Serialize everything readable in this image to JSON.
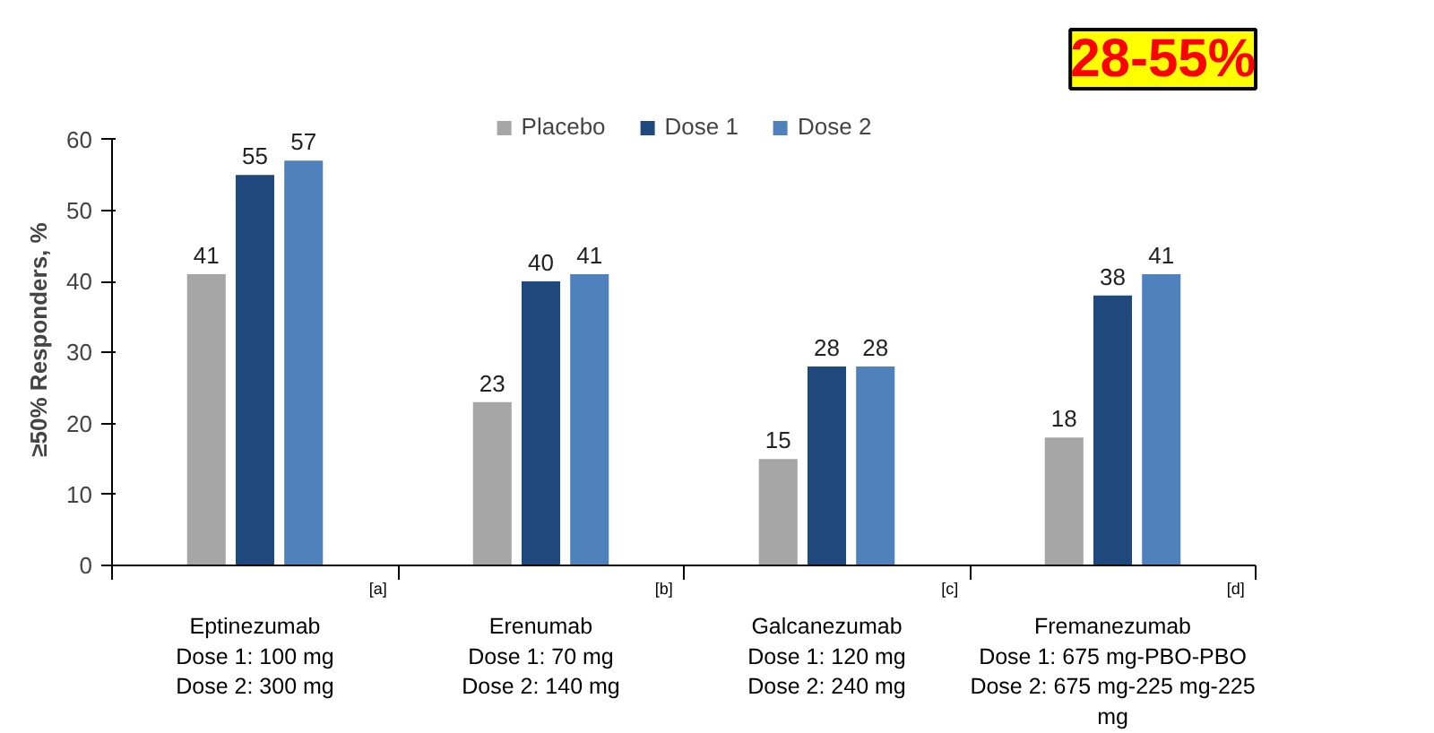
{
  "chart_data": {
    "type": "bar",
    "categories": [
      "Eptinezumab\nDose 1: 100 mg\nDose 2: 300 mg",
      "Erenumab\nDose 1: 70 mg\nDose 2: 140 mg",
      "Galcanezumab\nDose 1: 120 mg\nDose 2: 240 mg",
      "Fremanezumab\nDose 1: 675 mg-PBO-PBO\nDose 2: 675 mg-225 mg-225 mg"
    ],
    "series": [
      {
        "name": "Placebo",
        "color": "#a6a6a6",
        "values": [
          41,
          23,
          15,
          18
        ]
      },
      {
        "name": "Dose 1",
        "color": "#1f497d",
        "values": [
          55,
          40,
          28,
          38
        ]
      },
      {
        "name": "Dose 2",
        "color": "#4f81bd",
        "values": [
          57,
          41,
          28,
          41
        ]
      }
    ],
    "ylabel": "≥50% Responders, %",
    "ylim": [
      0,
      60
    ],
    "yticks": [
      0,
      10,
      20,
      30,
      40,
      50,
      60
    ],
    "data_labels": true,
    "legend": "top",
    "grid": false,
    "annotations": [
      "[a]",
      "[b]",
      "[c]",
      "[d]",
      "28-55%"
    ]
  }
}
